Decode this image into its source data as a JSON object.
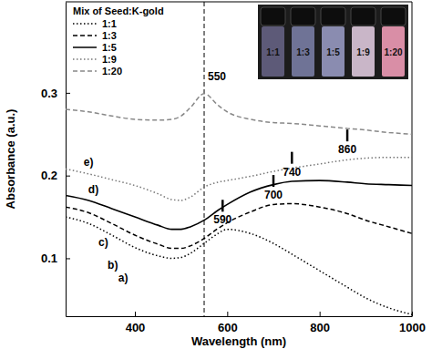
{
  "chart_data": {
    "type": "line",
    "x_label": "Wavelength (nm)",
    "y_label": "Absorbance (a.u.)",
    "legend_title": "Mix of Seed:K-gold",
    "legend": "upper left",
    "x": [
      250,
      300,
      350,
      400,
      450,
      480,
      500,
      520,
      550,
      580,
      600,
      650,
      700,
      740,
      800,
      860,
      900,
      950,
      1000
    ],
    "series": [
      {
        "name": "1:1",
        "color": "#000000",
        "line_style": "dotted",
        "values": [
          0.15,
          0.142,
          0.128,
          0.113,
          0.103,
          0.1,
          0.101,
          0.106,
          0.118,
          0.13,
          0.135,
          0.13,
          0.118,
          0.105,
          0.085,
          0.065,
          0.052,
          0.04,
          0.032
        ]
      },
      {
        "name": "1:3",
        "color": "#000000",
        "line_style": "dashed",
        "values": [
          0.162,
          0.155,
          0.142,
          0.128,
          0.117,
          0.112,
          0.112,
          0.115,
          0.124,
          0.136,
          0.143,
          0.156,
          0.165,
          0.166,
          0.162,
          0.154,
          0.146,
          0.138,
          0.13
        ]
      },
      {
        "name": "1:5",
        "color": "#000000",
        "line_style": "solid",
        "values": [
          0.176,
          0.17,
          0.16,
          0.15,
          0.14,
          0.135,
          0.135,
          0.138,
          0.146,
          0.158,
          0.165,
          0.18,
          0.189,
          0.193,
          0.194,
          0.192,
          0.19,
          0.189,
          0.188
        ]
      },
      {
        "name": "1:9",
        "color": "#777777",
        "line_style": "dotted",
        "values": [
          0.208,
          0.202,
          0.195,
          0.188,
          0.178,
          0.171,
          0.17,
          0.174,
          0.186,
          0.192,
          0.194,
          0.199,
          0.205,
          0.209,
          0.214,
          0.219,
          0.221,
          0.222,
          0.222
        ]
      },
      {
        "name": "1:20",
        "color": "#888888",
        "line_style": "dashed",
        "values": [
          0.28,
          0.277,
          0.272,
          0.268,
          0.267,
          0.268,
          0.272,
          0.282,
          0.299,
          0.285,
          0.277,
          0.268,
          0.264,
          0.263,
          0.26,
          0.257,
          0.255,
          0.252,
          0.25
        ]
      }
    ],
    "xlim": [
      250,
      1000
    ],
    "xticks": [
      400,
      600,
      800,
      1000
    ],
    "ylim": [
      0.03,
      0.41
    ],
    "yticks": [
      0.1,
      0.2,
      0.3
    ],
    "grid": false,
    "curve_labels": [
      {
        "text": "a)",
        "x": 364,
        "y": 0.072
      },
      {
        "text": "b)",
        "x": 341,
        "y": 0.087
      },
      {
        "text": "c)",
        "x": 321,
        "y": 0.115
      },
      {
        "text": "d)",
        "x": 299,
        "y": 0.179
      },
      {
        "text": "e)",
        "x": 289,
        "y": 0.212
      }
    ],
    "peak_labels": [
      {
        "text": "590",
        "x": 590,
        "y": 0.142
      },
      {
        "text": "700",
        "x": 700,
        "y": 0.172
      },
      {
        "text": "740",
        "x": 740,
        "y": 0.2
      },
      {
        "text": "860",
        "x": 860,
        "y": 0.227
      }
    ],
    "vline": {
      "x": 550,
      "label": "550",
      "label_y": 0.315
    },
    "inset": {
      "labels": [
        "1:1",
        "1:3",
        "1:5",
        "1:9",
        "1:20"
      ],
      "colors": [
        "#5d5a78",
        "#6f7396",
        "#8a8cb0",
        "#c9b6c8",
        "#d98ea6"
      ]
    }
  }
}
